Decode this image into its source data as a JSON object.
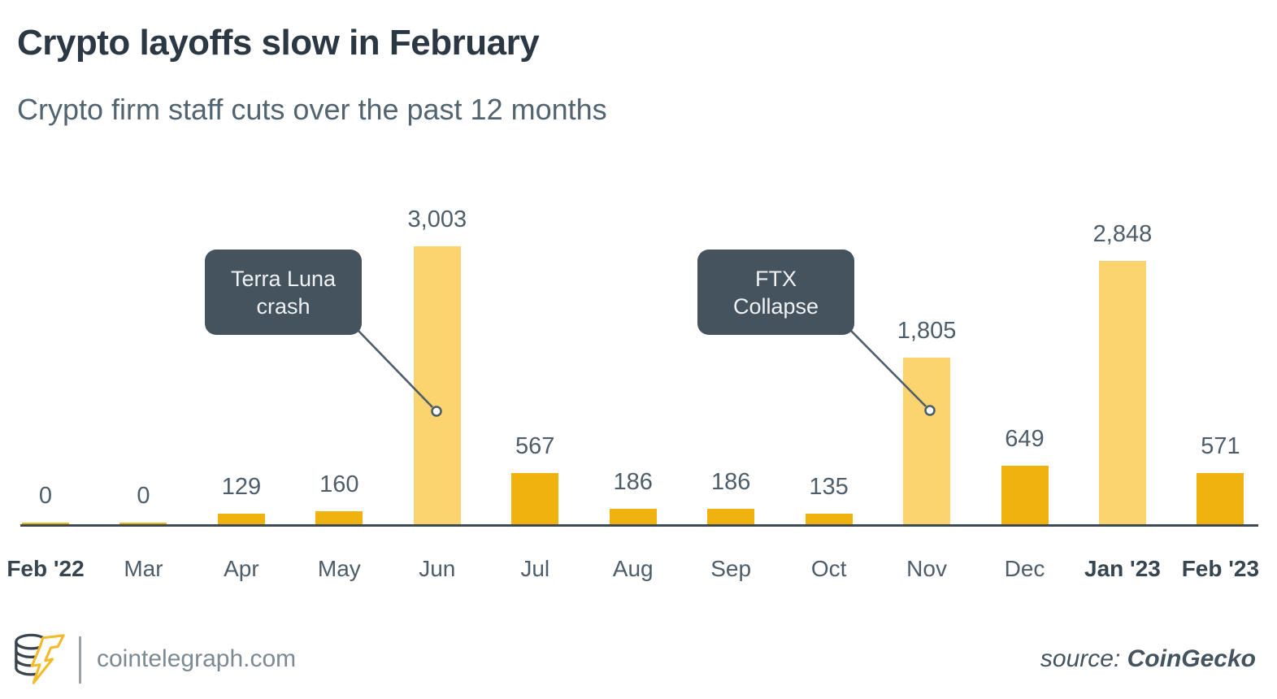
{
  "header": {
    "title": "Crypto layoffs slow in February",
    "subtitle": "Crypto firm staff cuts over the past 12 months"
  },
  "chart_data": {
    "type": "bar",
    "title": "Crypto layoffs slow in February",
    "subtitle": "Crypto firm staff cuts over the past 12 months",
    "categories": [
      "Feb '22",
      "Mar",
      "Apr",
      "May",
      "Jun",
      "Jul",
      "Aug",
      "Sep",
      "Oct",
      "Nov",
      "Dec",
      "Jan '23",
      "Feb '23"
    ],
    "values": [
      0,
      0,
      129,
      160,
      3003,
      567,
      186,
      186,
      135,
      1805,
      649,
      2848,
      571
    ],
    "value_labels": [
      "0",
      "0",
      "129",
      "160",
      "3,003",
      "567",
      "186",
      "186",
      "135",
      "1,805",
      "649",
      "2,848",
      "571"
    ],
    "highlighted": [
      false,
      false,
      false,
      false,
      true,
      false,
      false,
      false,
      false,
      true,
      false,
      true,
      false
    ],
    "bold_categories": [
      true,
      false,
      false,
      false,
      false,
      false,
      false,
      false,
      false,
      false,
      false,
      true,
      true
    ],
    "ylim": [
      0,
      3003
    ],
    "grid": false,
    "legend": "none",
    "annotations": [
      {
        "lines": [
          "Terra Luna",
          "crash"
        ],
        "target_category": "Jun"
      },
      {
        "lines": [
          "FTX",
          "Collapse"
        ],
        "target_category": "Nov"
      }
    ],
    "colors": {
      "bar": "#f0b20e",
      "bar_highlight": "#fbd470",
      "callout_bg": "#45535e",
      "callout_text": "#eef2f4",
      "axis": "#3d4a54",
      "label_text": "#4d5d6a"
    }
  },
  "footer": {
    "logo": "cointelegraph-coin-bolt-logo",
    "site": "cointelegraph.com",
    "source_prefix": "source: ",
    "source_name": "CoinGecko"
  }
}
